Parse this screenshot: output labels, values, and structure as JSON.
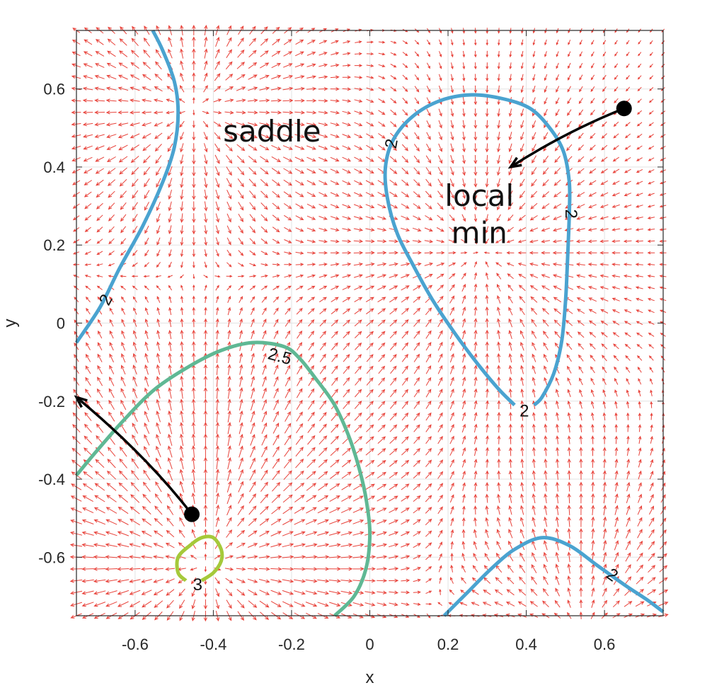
{
  "chart_data": {
    "type": "vector-field-contour",
    "xlabel": "x",
    "ylabel": "y",
    "xlim": [
      -0.75,
      0.75
    ],
    "ylim": [
      -0.75,
      0.75
    ],
    "xticks": [
      -0.6,
      -0.4,
      -0.2,
      0,
      0.2,
      0.4,
      0.6
    ],
    "yticks": [
      -0.6,
      -0.4,
      -0.2,
      0,
      0.2,
      0.4,
      0.6
    ],
    "xtick_labels": [
      "-0.6",
      "-0.4",
      "-0.2",
      "0",
      "0.2",
      "0.4",
      "0.6"
    ],
    "ytick_labels": [
      "-0.6",
      "-0.4",
      "-0.2",
      "0",
      "0.2",
      "0.4",
      "0.6"
    ],
    "grid": true,
    "quiver": {
      "color": "#e8423a",
      "field": "negative gradient of f(x,y) = 2.33 - 0.33*exp(-((x-0.28)^2+(y-0.18)^2)/0.10) + 1.10*exp(-((x+0.42)^2+(y+0.62)^2)/0.18) + 0.45*exp(-((x+0.45)^2+(y-0.55)^2)/0.08) + 0.55*exp(-((x-0.55)^2+(y+0.80)^2)/0.12)",
      "grid_step": 0.03
    },
    "contours": [
      {
        "level": 2,
        "label": "2",
        "color": "#4aa3d0",
        "paths": [
          [
            [
              -0.555,
              0.75
            ],
            [
              -0.53,
              0.7
            ],
            [
              -0.5,
              0.62
            ],
            [
              -0.49,
              0.54
            ],
            [
              -0.5,
              0.45
            ],
            [
              -0.53,
              0.36
            ],
            [
              -0.58,
              0.25
            ],
            [
              -0.64,
              0.14
            ],
            [
              -0.69,
              0.04
            ],
            [
              -0.75,
              -0.05
            ]
          ],
          [
            [
              0.37,
              -0.21
            ],
            [
              0.33,
              -0.17
            ],
            [
              0.28,
              -0.11
            ],
            [
              0.22,
              -0.03
            ],
            [
              0.16,
              0.06
            ],
            [
              0.11,
              0.15
            ],
            [
              0.07,
              0.23
            ],
            [
              0.045,
              0.32
            ],
            [
              0.04,
              0.4
            ],
            [
              0.06,
              0.47
            ],
            [
              0.11,
              0.53
            ],
            [
              0.18,
              0.57
            ],
            [
              0.26,
              0.585
            ],
            [
              0.34,
              0.575
            ],
            [
              0.41,
              0.55
            ],
            [
              0.46,
              0.5
            ],
            [
              0.495,
              0.44
            ],
            [
              0.51,
              0.36
            ],
            [
              0.51,
              0.28
            ],
            [
              0.505,
              0.15
            ],
            [
              0.5,
              0.05
            ],
            [
              0.49,
              -0.05
            ],
            [
              0.47,
              -0.13
            ],
            [
              0.44,
              -0.19
            ],
            [
              0.42,
              -0.21
            ]
          ],
          [
            [
              0.19,
              -0.75
            ],
            [
              0.25,
              -0.69
            ],
            [
              0.31,
              -0.63
            ],
            [
              0.37,
              -0.58
            ],
            [
              0.44,
              -0.55
            ],
            [
              0.51,
              -0.57
            ],
            [
              0.58,
              -0.62
            ],
            [
              0.65,
              -0.67
            ],
            [
              0.71,
              -0.71
            ],
            [
              0.75,
              -0.74
            ]
          ]
        ]
      },
      {
        "level": 2.5,
        "label": "2.5",
        "color": "#5fb894",
        "paths": [
          [
            [
              -0.75,
              -0.39
            ],
            [
              -0.7,
              -0.33
            ],
            [
              -0.63,
              -0.25
            ],
            [
              -0.55,
              -0.17
            ],
            [
              -0.46,
              -0.11
            ],
            [
              -0.38,
              -0.07
            ],
            [
              -0.3,
              -0.05
            ],
            [
              -0.22,
              -0.06
            ],
            [
              -0.18,
              -0.09
            ],
            [
              -0.14,
              -0.14
            ],
            [
              -0.09,
              -0.21
            ],
            [
              -0.05,
              -0.3
            ],
            [
              -0.02,
              -0.4
            ],
            [
              -0.005,
              -0.48
            ],
            [
              0.0,
              -0.55
            ],
            [
              -0.01,
              -0.63
            ],
            [
              -0.04,
              -0.7
            ],
            [
              -0.09,
              -0.75
            ]
          ]
        ]
      },
      {
        "level": 3,
        "label": "3",
        "color": "#a5c93a",
        "paths": [
          [
            [
              -0.43,
              -0.66
            ],
            [
              -0.4,
              -0.64
            ],
            [
              -0.38,
              -0.61
            ],
            [
              -0.38,
              -0.58
            ],
            [
              -0.4,
              -0.55
            ],
            [
              -0.43,
              -0.55
            ],
            [
              -0.46,
              -0.57
            ],
            [
              -0.49,
              -0.6
            ],
            [
              -0.49,
              -0.64
            ],
            [
              -0.47,
              -0.66
            ]
          ]
        ]
      }
    ],
    "contour_labels": [
      {
        "text": "2",
        "x": -0.675,
        "y": 0.06,
        "angle": -62
      },
      {
        "text": "2",
        "x": 0.055,
        "y": 0.46,
        "angle": -80
      },
      {
        "text": "2",
        "x": 0.515,
        "y": 0.28,
        "angle": 90
      },
      {
        "text": "2",
        "x": 0.395,
        "y": -0.225,
        "angle": 0
      },
      {
        "text": "2",
        "x": 0.62,
        "y": -0.645,
        "angle": 35
      },
      {
        "text": "2.5",
        "x": -0.23,
        "y": -0.085,
        "angle": 15
      },
      {
        "text": "3",
        "x": -0.44,
        "y": -0.67,
        "angle": 0
      }
    ],
    "annotations": [
      {
        "text": "saddle",
        "x": -0.25,
        "y": 0.465
      },
      {
        "text": "local",
        "x": 0.28,
        "y": 0.3
      },
      {
        "text": "min",
        "x": 0.28,
        "y": 0.205
      }
    ],
    "trajectories": [
      {
        "start": [
          0.65,
          0.55
        ],
        "via": [
          0.5,
          0.49
        ],
        "end": [
          0.36,
          0.4
        ]
      },
      {
        "start": [
          -0.455,
          -0.49
        ],
        "via": [
          -0.57,
          -0.34
        ],
        "end": [
          -0.75,
          -0.19
        ]
      }
    ]
  }
}
